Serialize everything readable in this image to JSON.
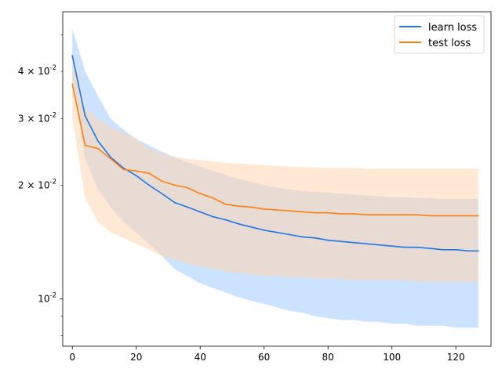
{
  "chart_data": {
    "type": "line",
    "xlim": [
      -3,
      131
    ],
    "ylim": [
      0.0075,
      0.0575
    ],
    "yscale": "log",
    "x_ticks": [
      0,
      20,
      40,
      60,
      80,
      100,
      120
    ],
    "x_tick_labels": [
      "0",
      "20",
      "40",
      "60",
      "80",
      "100",
      "120"
    ],
    "y_major_ticks": [
      0.01
    ],
    "y_major_tick_labels": [
      "10^{-2}"
    ],
    "y_minor_ticks": [
      0.008,
      0.009,
      0.02,
      0.03,
      0.04,
      0.05
    ],
    "y_minor_tick_labels": [
      "",
      "",
      "2 × 10^{-2}",
      "3 × 10^{-2}",
      "4 × 10^{-2}",
      ""
    ],
    "grid": false,
    "legend_position": "top-right",
    "series": [
      {
        "name": "learn loss",
        "color": "#1f77e4",
        "fill_color": "#a8d1ff",
        "x_start": 0,
        "x_step": 4,
        "values": [
          0.044,
          0.0305,
          0.0262,
          0.0237,
          0.0222,
          0.0212,
          0.02,
          0.019,
          0.018,
          0.0175,
          0.017,
          0.0165,
          0.0162,
          0.0158,
          0.0155,
          0.0152,
          0.015,
          0.0148,
          0.0146,
          0.0145,
          0.0143,
          0.0142,
          0.0141,
          0.014,
          0.0139,
          0.0138,
          0.0137,
          0.0137,
          0.0136,
          0.0135,
          0.0135,
          0.0134,
          0.0134
        ],
        "upper": [
          0.052,
          0.04,
          0.0345,
          0.03,
          0.028,
          0.0265,
          0.0255,
          0.0245,
          0.0237,
          0.023,
          0.0224,
          0.0218,
          0.0213,
          0.0208,
          0.0204,
          0.02,
          0.0197,
          0.0195,
          0.0193,
          0.0192,
          0.0191,
          0.019,
          0.0189,
          0.0188,
          0.0187,
          0.0186,
          0.0186,
          0.0185,
          0.0185,
          0.0184,
          0.0184,
          0.0184,
          0.0184
        ],
        "lower": [
          0.038,
          0.0235,
          0.0195,
          0.0175,
          0.016,
          0.015,
          0.014,
          0.013,
          0.012,
          0.0115,
          0.011,
          0.0107,
          0.0104,
          0.0101,
          0.0099,
          0.0097,
          0.0095,
          0.0093,
          0.0092,
          0.009,
          0.0089,
          0.0088,
          0.0088,
          0.0087,
          0.0087,
          0.0086,
          0.0086,
          0.0085,
          0.0085,
          0.0085,
          0.0084,
          0.0084,
          0.0084
        ]
      },
      {
        "name": "test loss",
        "color": "#ff7f0e",
        "fill_color": "#ffd6b0",
        "x_start": 0,
        "x_step": 4,
        "values": [
          0.037,
          0.0255,
          0.025,
          0.0235,
          0.022,
          0.0218,
          0.0215,
          0.0205,
          0.02,
          0.0197,
          0.019,
          0.0185,
          0.0178,
          0.0176,
          0.0175,
          0.0173,
          0.0172,
          0.0171,
          0.017,
          0.0169,
          0.0169,
          0.0168,
          0.0168,
          0.0167,
          0.0167,
          0.0167,
          0.0167,
          0.0167,
          0.0166,
          0.0166,
          0.0166,
          0.0166,
          0.0166
        ],
        "upper": [
          0.045,
          0.032,
          0.03,
          0.0285,
          0.0275,
          0.0265,
          0.025,
          0.0242,
          0.0238,
          0.0235,
          0.0233,
          0.0231,
          0.0229,
          0.0228,
          0.0227,
          0.0226,
          0.0225,
          0.0224,
          0.0223,
          0.0223,
          0.0222,
          0.0222,
          0.0222,
          0.0221,
          0.0221,
          0.0221,
          0.0221,
          0.0221,
          0.0221,
          0.0221,
          0.0221,
          0.0221,
          0.0221
        ],
        "lower": [
          0.03,
          0.0185,
          0.016,
          0.015,
          0.0145,
          0.014,
          0.0135,
          0.013,
          0.0127,
          0.0124,
          0.0122,
          0.012,
          0.0118,
          0.0117,
          0.0116,
          0.0115,
          0.0115,
          0.0114,
          0.0114,
          0.0113,
          0.0113,
          0.0113,
          0.0112,
          0.0112,
          0.0112,
          0.0112,
          0.0112,
          0.0111,
          0.0111,
          0.0111,
          0.0111,
          0.0111,
          0.0111
        ]
      }
    ]
  }
}
